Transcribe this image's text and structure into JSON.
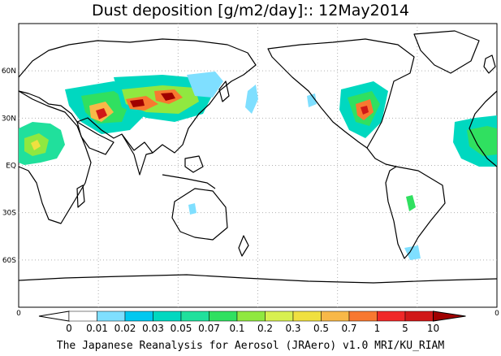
{
  "title": "Dust deposition [g/m2/day]:: 12May2014",
  "credit": "The Japanese Reanalysis for Aerosol (JRAero) v1.0 MRI/KU_RIAM",
  "lat_labels": [
    "60N",
    "30N",
    "EQ",
    "30S",
    "60S"
  ],
  "lat_values": [
    60,
    30,
    0,
    -30,
    -60
  ],
  "legend": {
    "left_end_label": "0",
    "right_end_label": "0",
    "tick_labels": [
      "0",
      "0.01",
      "0.02",
      "0.03",
      "0.05",
      "0.07",
      "0.1",
      "0.2",
      "0.3",
      "0.5",
      "0.7",
      "1",
      "5",
      "10"
    ],
    "colors": [
      "#ffffff",
      "#7fdfff",
      "#00c8f0",
      "#00d8c0",
      "#20e09c",
      "#30e060",
      "#90e840",
      "#d8f050",
      "#f0e040",
      "#f8b848",
      "#f87830",
      "#f02828",
      "#d01818",
      "#a00000"
    ]
  },
  "map": {
    "ocean_color": "#ffffff",
    "coast_color": "#000000",
    "gridline_color": "#b0b0b0",
    "gridlines": "dotted",
    "lon_range": [
      0,
      360
    ],
    "lat_range": [
      -90,
      90
    ]
  }
}
